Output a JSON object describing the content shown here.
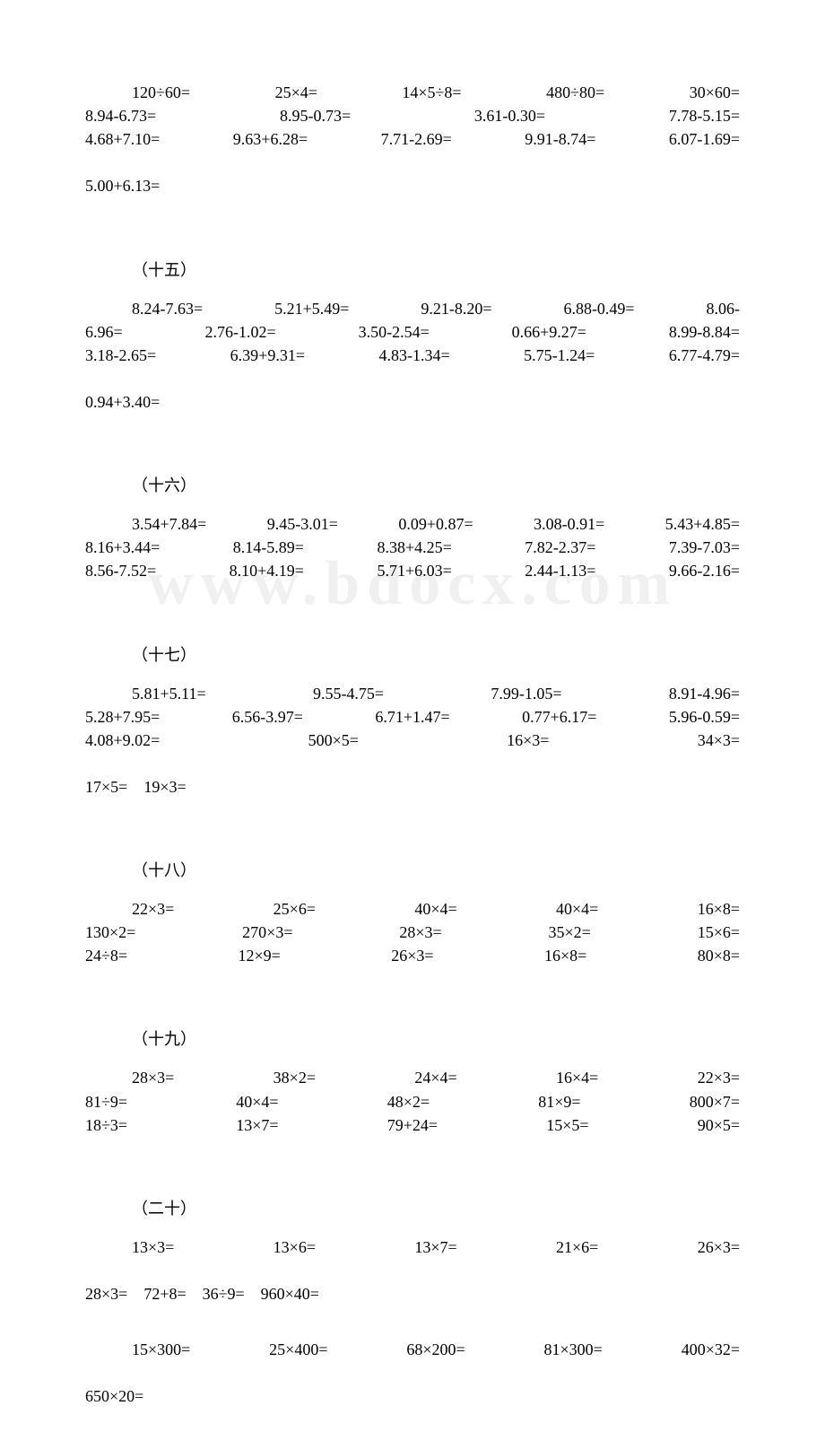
{
  "watermark": "www.bdocx.com",
  "sections": [
    {
      "heading": "",
      "rows": [
        [
          "120÷60=",
          "25×4=",
          "14×5÷8=",
          "480÷80=",
          "30×60="
        ],
        [
          "8.94-6.73=",
          "8.95-0.73=",
          "3.61-0.30=",
          "7.78-5.15="
        ],
        [
          "4.68+7.10=",
          "9.63+6.28=",
          "7.71-2.69=",
          "9.91-8.74=",
          "6.07-1.69="
        ],
        [
          "5.00+6.13="
        ]
      ],
      "indentFirst": true,
      "finalShort": true
    },
    {
      "heading": "（十五）",
      "rows": [
        [
          "8.24-7.63=",
          "5.21+5.49=",
          "9.21-8.20=",
          "6.88-0.49=",
          "8.06-"
        ],
        [
          "6.96=",
          "2.76-1.02=",
          "3.50-2.54=",
          "0.66+9.27=",
          "8.99-8.84="
        ],
        [
          "3.18-2.65=",
          "6.39+9.31=",
          "4.83-1.34=",
          "5.75-1.24=",
          "6.77-4.79="
        ],
        [
          "0.94+3.40="
        ]
      ],
      "indentFirst": true,
      "finalShort": true
    },
    {
      "heading": "（十六）",
      "rows": [
        [
          "3.54+7.84=",
          "9.45-3.01=",
          "0.09+0.87=",
          "3.08-0.91=",
          "5.43+4.85="
        ],
        [
          "8.16+3.44=",
          "8.14-5.89=",
          "8.38+4.25=",
          "7.82-2.37=",
          "7.39-7.03="
        ],
        [
          "8.56-7.52=",
          "8.10+4.19=",
          "5.71+6.03=",
          "2.44-1.13=",
          "9.66-2.16="
        ]
      ],
      "indentFirst": true,
      "finalShort": false
    },
    {
      "heading": "（十七）",
      "rows": [
        [
          "5.81+5.11=",
          "9.55-4.75=",
          "7.99-1.05=",
          "8.91-4.96="
        ],
        [
          "5.28+7.95=",
          "6.56-3.97=",
          "6.71+1.47=",
          "0.77+6.17=",
          "5.96-0.59="
        ],
        [
          "4.08+9.02=",
          "500×5=",
          "16×3=",
          "34×3="
        ],
        [
          "17×5=",
          "19×3="
        ]
      ],
      "indentFirst": true,
      "finalShort": true
    },
    {
      "heading": "（十八）",
      "rows": [
        [
          "22×3=",
          "25×6=",
          "40×4=",
          "40×4=",
          "16×8="
        ],
        [
          "130×2=",
          "270×3=",
          "28×3=",
          "35×2=",
          "15×6="
        ],
        [
          "24÷8=",
          "12×9=",
          "26×3=",
          "16×8=",
          "80×8="
        ]
      ],
      "indentFirst": true,
      "finalShort": false
    },
    {
      "heading": "（十九）",
      "rows": [
        [
          "28×3=",
          "38×2=",
          "24×4=",
          "16×4=",
          "22×3="
        ],
        [
          "81÷9=",
          "40×4=",
          "48×2=",
          "81×9=",
          "800×7="
        ],
        [
          "18÷3=",
          "13×7=",
          "79+24=",
          "15×5=",
          "90×5="
        ]
      ],
      "indentFirst": true,
      "finalShort": false
    },
    {
      "heading": "（二十）",
      "rows": [
        [
          "13×3=",
          "13×6=",
          "13×7=",
          "21×6=",
          "26×3="
        ],
        [
          "28×3=",
          "72+8=",
          "36÷9=",
          "960×40="
        ]
      ],
      "extraRows": [
        [
          "15×300=",
          "25×400=",
          "68×200=",
          "81×300=",
          "400×32="
        ],
        [
          "650×20="
        ]
      ],
      "indentFirst": true,
      "finalShort": true
    }
  ]
}
